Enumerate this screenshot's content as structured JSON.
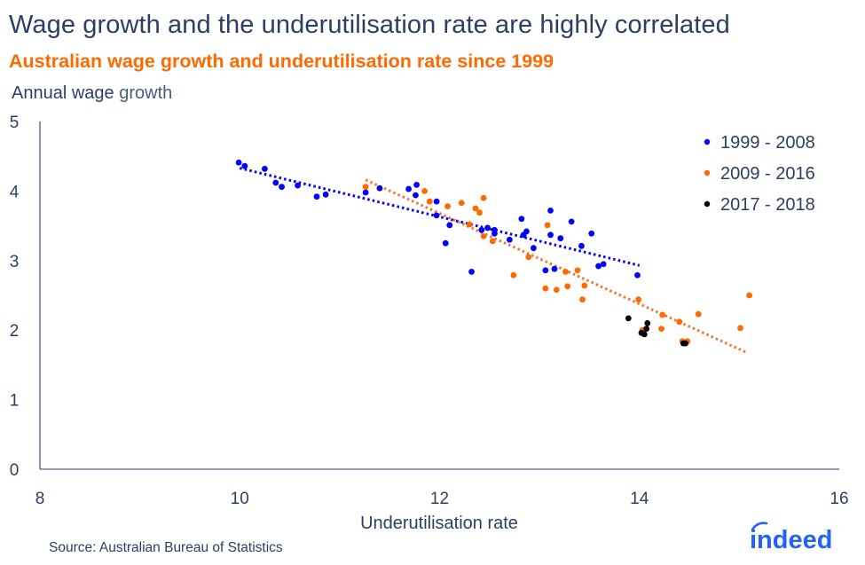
{
  "title": "Wage growth and the underutilisation rate are highly correlated",
  "subtitle": "Australian wage growth and underutilisation rate since 1999",
  "source": "Source: Australian Bureau of Statistics",
  "logo_text": "indeed",
  "colors": {
    "title": "#2b3f66",
    "subtitle": "#ff6a00",
    "series_1999_2008": "#0000ff",
    "series_2009_2016": "#ff6a00",
    "series_2017_2018": "#000000",
    "trend_1999_2008": "#0000ff",
    "trend_2009_2016": "#f0782d",
    "axis": "#4a5b7d",
    "logo": "#2164f3"
  },
  "chart_data": {
    "type": "scatter",
    "title": "Wage growth and the underutilisation rate are highly correlated",
    "subtitle": "Australian wage growth and underutilisation rate since 1999",
    "xlabel": "Underutilisation rate",
    "ylabel_parts": [
      "Annual wage",
      "growth"
    ],
    "ylabel": "Annual wage growth",
    "xlim": [
      8,
      16
    ],
    "ylim": [
      0,
      5
    ],
    "xticks": [
      8,
      10,
      12,
      14,
      16
    ],
    "yticks": [
      0,
      1,
      2,
      3,
      4,
      5
    ],
    "grid": false,
    "legend_position": "top-right",
    "series": [
      {
        "name": "1999 - 2008",
        "color": "#0000ff",
        "points": [
          [
            9.99,
            4.41
          ],
          [
            10.05,
            4.36
          ],
          [
            10.25,
            4.32
          ],
          [
            10.36,
            4.12
          ],
          [
            10.42,
            4.06
          ],
          [
            10.58,
            4.08
          ],
          [
            10.77,
            3.92
          ],
          [
            10.86,
            3.95
          ],
          [
            11.26,
            3.98
          ],
          [
            11.4,
            4.04
          ],
          [
            11.69,
            4.03
          ],
          [
            11.77,
            4.09
          ],
          [
            11.76,
            3.94
          ],
          [
            11.97,
            3.85
          ],
          [
            11.97,
            3.65
          ],
          [
            12.06,
            3.25
          ],
          [
            12.1,
            3.51
          ],
          [
            12.32,
            2.84
          ],
          [
            12.42,
            3.44
          ],
          [
            12.48,
            3.47
          ],
          [
            12.55,
            3.44
          ],
          [
            12.55,
            3.39
          ],
          [
            12.7,
            3.3
          ],
          [
            12.82,
            3.6
          ],
          [
            12.84,
            3.37
          ],
          [
            12.87,
            3.42
          ],
          [
            12.94,
            3.18
          ],
          [
            13.06,
            2.86
          ],
          [
            13.11,
            3.72
          ],
          [
            13.11,
            3.37
          ],
          [
            13.15,
            2.88
          ],
          [
            13.21,
            3.32
          ],
          [
            13.32,
            3.56
          ],
          [
            13.42,
            3.21
          ],
          [
            13.52,
            3.39
          ],
          [
            13.59,
            2.92
          ],
          [
            13.64,
            2.95
          ],
          [
            13.98,
            2.79
          ]
        ],
        "trendline": [
          [
            10.0,
            4.33
          ],
          [
            14.0,
            2.93
          ]
        ]
      },
      {
        "name": "2009 - 2016",
        "color": "#ff6a00",
        "points": [
          [
            11.26,
            4.06
          ],
          [
            11.85,
            4.0
          ],
          [
            11.9,
            3.85
          ],
          [
            12.08,
            3.78
          ],
          [
            12.22,
            3.83
          ],
          [
            12.36,
            3.75
          ],
          [
            12.4,
            3.69
          ],
          [
            12.44,
            3.9
          ],
          [
            12.3,
            3.52
          ],
          [
            12.44,
            3.35
          ],
          [
            12.53,
            3.28
          ],
          [
            12.74,
            2.79
          ],
          [
            12.89,
            3.05
          ],
          [
            13.08,
            3.51
          ],
          [
            13.06,
            2.6
          ],
          [
            13.17,
            2.58
          ],
          [
            13.28,
            2.63
          ],
          [
            13.26,
            2.84
          ],
          [
            13.38,
            2.86
          ],
          [
            13.45,
            2.64
          ],
          [
            13.43,
            2.44
          ],
          [
            13.99,
            2.44
          ],
          [
            14.03,
            2.0
          ],
          [
            14.23,
            2.22
          ],
          [
            14.22,
            2.02
          ],
          [
            14.4,
            2.12
          ],
          [
            14.59,
            2.23
          ],
          [
            14.43,
            1.84
          ],
          [
            14.48,
            1.84
          ],
          [
            15.01,
            2.03
          ],
          [
            15.1,
            2.5
          ]
        ],
        "trendline": [
          [
            11.26,
            4.16
          ],
          [
            15.07,
            1.68
          ]
        ]
      },
      {
        "name": "2017 - 2018",
        "color": "#000000",
        "points": [
          [
            13.89,
            2.17
          ],
          [
            14.08,
            2.1
          ],
          [
            14.07,
            2.02
          ],
          [
            14.02,
            1.96
          ],
          [
            14.05,
            1.94
          ],
          [
            14.44,
            1.81
          ],
          [
            14.46,
            1.81
          ]
        ],
        "trendline": null
      }
    ]
  }
}
